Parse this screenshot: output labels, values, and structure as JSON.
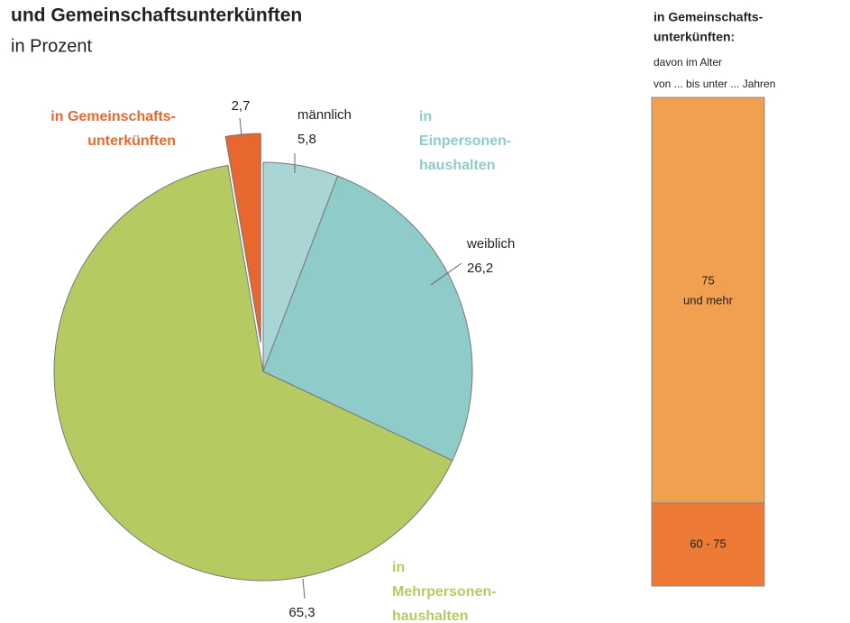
{
  "chart_data": [
    {
      "type": "pie",
      "title": "und Gemeinschaftsunterkünften",
      "subtitle": "in Prozent",
      "categories": [
        "männlich",
        "weiblich",
        null,
        null
      ],
      "values": [
        5.8,
        26.2,
        65.3,
        2.7
      ],
      "value_labels": [
        "5,8",
        "26,2",
        "65,3",
        "2,7"
      ],
      "colors": [
        "#a9d6d4",
        "#8fcbc8",
        "#b5cb62",
        "#e8672e"
      ],
      "exploded": [
        false,
        false,
        false,
        true
      ],
      "groups": [
        {
          "lines": [
            "in",
            "Einpersonen-",
            "haushalten"
          ],
          "color": "#8fcbc8"
        },
        {
          "lines": [
            "in",
            "Mehrpersonen-",
            "haushalten"
          ],
          "color": "#b5cb62"
        },
        {
          "lines": [
            "in Gemeinschafts-",
            "unterkünften"
          ],
          "color": "#e8672e"
        }
      ]
    },
    {
      "type": "stacked_bar",
      "title_lines": [
        "in Gemeinschafts-",
        "unterkünften:"
      ],
      "subtitle_lines": [
        "davon im  Alter",
        "von ... bis unter ... Jahren"
      ],
      "ylim": [
        0,
        100
      ],
      "segments": [
        {
          "lines": [
            "60 - 75"
          ],
          "value": 17,
          "color": "#ec7a35"
        },
        {
          "lines": [
            "75",
            "und mehr"
          ],
          "value": 83,
          "color": "#f1a04f"
        }
      ]
    }
  ]
}
